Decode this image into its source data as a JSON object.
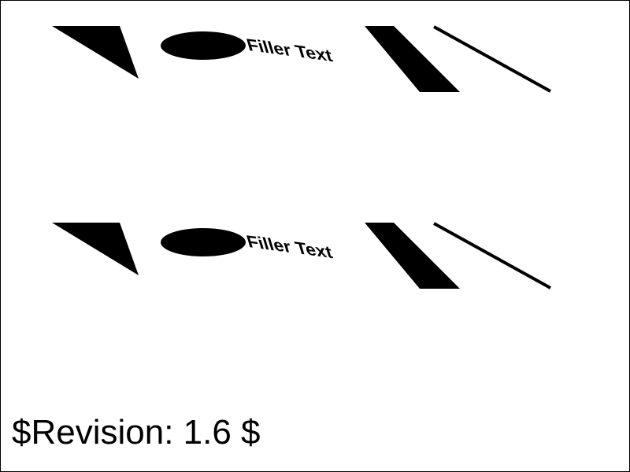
{
  "rows": [
    {
      "label": "Filler Text"
    },
    {
      "label": "Filler Text"
    }
  ],
  "footer": {
    "revision": "$Revision: 1.6 $"
  },
  "colors": {
    "ink": "#000000",
    "background": "#ffffff",
    "frame": "#000000"
  }
}
